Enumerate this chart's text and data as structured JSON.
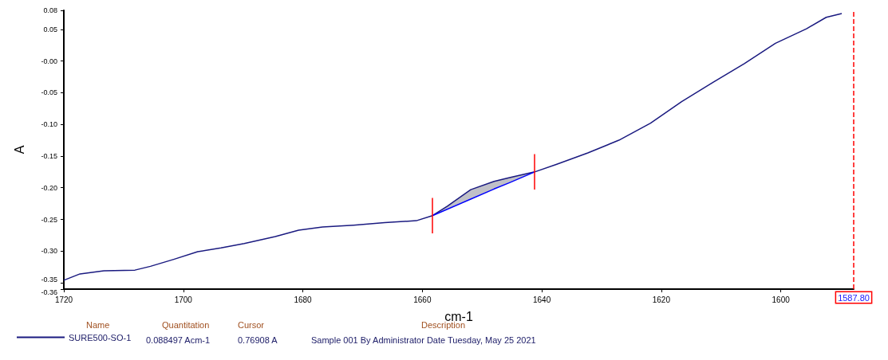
{
  "chart_data": {
    "type": "line",
    "xlabel": "cm-1",
    "ylabel": "A",
    "xlim": [
      1720,
      1587.8
    ],
    "xticks": [
      1720,
      1700,
      1680,
      1660,
      1640,
      1620,
      1600
    ],
    "ylim": [
      -0.36,
      0.08
    ],
    "yticks": [
      {
        "value": 0.08,
        "label": "0.08"
      },
      {
        "value": 0.05,
        "label": "0.05"
      },
      {
        "value": 0,
        "label": "-0.00"
      },
      {
        "value": -0.05,
        "label": "-0.05"
      },
      {
        "value": -0.1,
        "label": "-0.10"
      },
      {
        "value": -0.15,
        "label": "-0.15"
      },
      {
        "value": -0.2,
        "label": "-0.20"
      },
      {
        "value": -0.25,
        "label": "-0.25"
      },
      {
        "value": -0.3,
        "label": "-0.30"
      },
      {
        "value": -0.35,
        "label": "-0.35"
      },
      {
        "value": -0.36,
        "label": "-0.36"
      }
    ],
    "grid": false,
    "marker": "none",
    "line_style": "solid",
    "legend": "bottom left",
    "series": [
      {
        "name": "SURE500-SO-1",
        "color": "#1a1a80",
        "x": [
          1720,
          1717.3,
          1713.3,
          1708.1,
          1705.5,
          1701.6,
          1697.6,
          1693.7,
          1689.8,
          1684.6,
          1680.7,
          1676.7,
          1671.5,
          1666.3,
          1661.0,
          1658.3,
          1655.8,
          1651.9,
          1648.0,
          1645.4,
          1641.2,
          1637.5,
          1632.3,
          1627.1,
          1621.8,
          1616.6,
          1611.4,
          1606.1,
          1600.9,
          1595.7,
          1592.4,
          1589.8
        ],
        "values": [
          -0.346,
          -0.336,
          -0.331,
          -0.33,
          -0.324,
          -0.313,
          -0.301,
          -0.295,
          -0.288,
          -0.277,
          -0.267,
          -0.262,
          -0.259,
          -0.255,
          -0.252,
          -0.244,
          -0.229,
          -0.203,
          -0.19,
          -0.184,
          -0.175,
          -0.163,
          -0.145,
          -0.125,
          -0.098,
          -0.064,
          -0.034,
          -0.004,
          0.028,
          0.051,
          0.069,
          0.075
        ]
      },
      {
        "color": "#0000ff",
        "x": [
          1658.3,
          1651.9,
          1648.0,
          1645.4,
          1641.2
        ],
        "values": [
          -0.244,
          -0.218,
          -0.202,
          -0.192,
          -0.175
        ],
        "lower": [
          -0.244,
          -0.218,
          -0.202,
          -0.192,
          -0.175
        ],
        "upper": [
          -0.244,
          -0.203,
          -0.19,
          -0.184,
          -0.175
        ]
      }
    ],
    "ref_lines": [
      {
        "axis": "x",
        "value": 1658.3,
        "color": "#ff0000",
        "line_style": "solid"
      },
      {
        "axis": "x",
        "value": 1641.2,
        "color": "#ff0000",
        "line_style": "solid"
      },
      {
        "axis": "x",
        "value": 1587.8,
        "color": "#ff0000",
        "line_style": "dashed",
        "label": "1587.80"
      }
    ],
    "annotations": [
      "Name",
      "Quantitation",
      "Cursor",
      "Description",
      "0.088497 Acm-1",
      "0.76908 A",
      "Sample 001 By Administrator Date Tuesday, May 25 2021"
    ]
  }
}
